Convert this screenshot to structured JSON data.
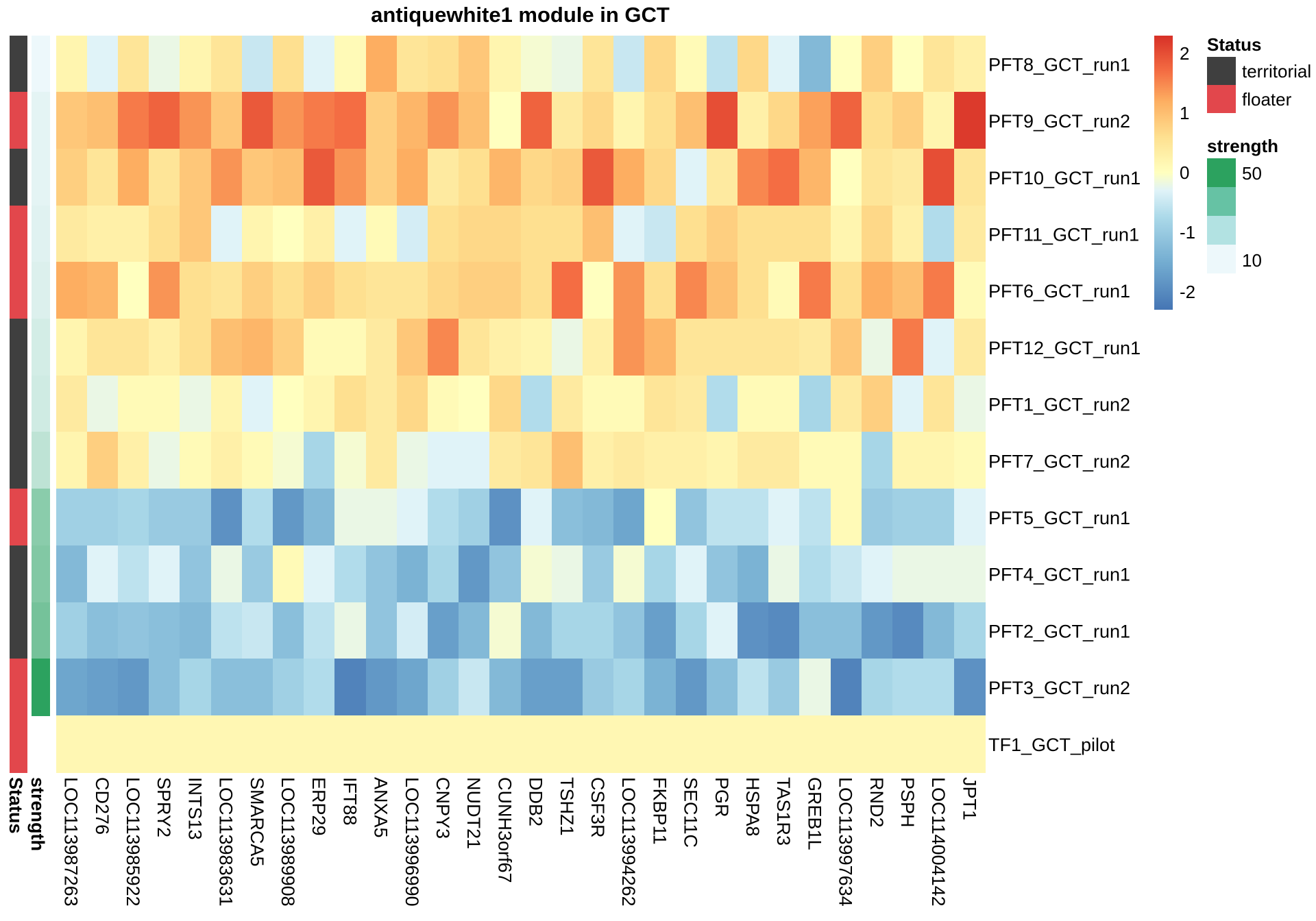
{
  "chart_data": {
    "type": "heatmap",
    "title": "antiquewhite1 module in GCT",
    "rows": [
      "PFT8_GCT_run1",
      "PFT9_GCT_run2",
      "PFT10_GCT_run1",
      "PFT11_GCT_run1",
      "PFT6_GCT_run1",
      "PFT12_GCT_run1",
      "PFT1_GCT_run2",
      "PFT7_GCT_run2",
      "PFT5_GCT_run1",
      "PFT4_GCT_run1",
      "PFT2_GCT_run1",
      "PFT3_GCT_run2",
      "TF1_GCT_pilot"
    ],
    "columns": [
      "LOC113987263",
      "CD276",
      "LOC113985922",
      "SPRY2",
      "INTS13",
      "LOC113983631",
      "SMARCA5",
      "LOC113989908",
      "ERP29",
      "IFT88",
      "ANXA5",
      "LOC113996990",
      "CNPY3",
      "NUDT21",
      "CUNH3orf67",
      "DDB2",
      "TSHZ1",
      "CSF3R",
      "LOC113994262",
      "FKBP11",
      "SEC11C",
      "PGR",
      "HSPA8",
      "TAS1R3",
      "GREB1L",
      "LOC113997634",
      "RND2",
      "PSPH",
      "LOC114004142",
      "JPT1"
    ],
    "values": [
      [
        0.2,
        -0.3,
        0.5,
        -0.2,
        0.2,
        0.5,
        -0.5,
        0.6,
        -0.3,
        0.1,
        1.2,
        0.5,
        0.6,
        0.9,
        0.2,
        -0.1,
        -0.2,
        0.5,
        -0.5,
        0.7,
        0.1,
        -0.6,
        0.7,
        -0.3,
        -1.3,
        0.0,
        0.8,
        0.0,
        0.5,
        0.3
      ],
      [
        0.9,
        1.0,
        1.6,
        1.8,
        1.4,
        0.9,
        1.9,
        1.4,
        1.6,
        1.7,
        0.8,
        1.1,
        1.4,
        1.0,
        0.0,
        1.8,
        0.4,
        0.7,
        0.2,
        0.6,
        1.0,
        2.0,
        0.3,
        0.7,
        1.3,
        1.8,
        0.6,
        0.8,
        0.2,
        2.2
      ],
      [
        0.8,
        0.5,
        1.2,
        0.5,
        0.9,
        1.4,
        0.9,
        1.0,
        1.9,
        1.4,
        0.8,
        1.2,
        0.4,
        0.6,
        1.1,
        0.7,
        0.8,
        1.9,
        1.2,
        0.7,
        -0.3,
        0.4,
        1.5,
        1.7,
        1.1,
        0.0,
        0.5,
        0.4,
        2.0,
        0.5
      ],
      [
        0.4,
        0.3,
        0.3,
        0.6,
        0.9,
        -0.3,
        0.2,
        0.0,
        0.3,
        -0.3,
        0.1,
        -0.4,
        0.6,
        0.7,
        0.7,
        0.6,
        0.6,
        1.0,
        -0.3,
        -0.5,
        0.6,
        0.8,
        0.6,
        0.6,
        0.6,
        0.2,
        0.7,
        0.3,
        -0.7,
        0.4
      ],
      [
        1.2,
        1.1,
        0.0,
        1.4,
        0.6,
        0.5,
        0.8,
        0.6,
        0.8,
        0.6,
        0.5,
        0.5,
        0.7,
        0.8,
        0.8,
        0.6,
        1.7,
        0.0,
        1.4,
        0.6,
        1.5,
        1.0,
        0.6,
        0.1,
        1.6,
        0.6,
        1.2,
        1.0,
        1.6,
        0.1
      ],
      [
        0.2,
        0.5,
        0.5,
        0.3,
        0.6,
        1.0,
        1.1,
        0.8,
        0.1,
        0.1,
        0.4,
        0.9,
        1.5,
        0.5,
        0.3,
        0.2,
        -0.2,
        0.3,
        1.4,
        1.1,
        0.5,
        0.5,
        0.5,
        0.5,
        0.4,
        0.9,
        -0.2,
        1.6,
        -0.3,
        0.4
      ],
      [
        0.4,
        -0.2,
        0.1,
        0.1,
        -0.2,
        0.2,
        -0.3,
        0.0,
        0.2,
        0.6,
        0.4,
        0.7,
        0.1,
        0.0,
        0.7,
        -0.7,
        0.4,
        0.1,
        0.1,
        0.5,
        0.4,
        -0.7,
        0.1,
        0.1,
        -0.8,
        0.4,
        0.8,
        -0.3,
        0.5,
        -0.2
      ],
      [
        0.2,
        0.8,
        0.3,
        -0.2,
        0.1,
        0.3,
        0.1,
        -0.1,
        -0.8,
        -0.1,
        0.4,
        -0.2,
        -0.3,
        -0.3,
        0.4,
        0.5,
        1.0,
        0.3,
        0.4,
        0.3,
        0.3,
        0.2,
        0.4,
        0.4,
        0.1,
        0.1,
        -0.8,
        0.2,
        0.2,
        0.1
      ],
      [
        -0.9,
        -0.9,
        -0.8,
        -1.0,
        -1.0,
        -1.9,
        -0.7,
        -1.8,
        -1.3,
        -0.2,
        -0.2,
        -0.3,
        -0.7,
        -0.9,
        -1.9,
        -0.3,
        -1.2,
        -1.3,
        -1.6,
        0.0,
        -1.1,
        -0.6,
        -0.6,
        -0.3,
        -0.6,
        0.1,
        -1.0,
        -0.9,
        -0.9,
        -0.3
      ],
      [
        -1.3,
        -0.3,
        -0.6,
        -0.3,
        -1.1,
        -0.2,
        -1.0,
        0.1,
        -0.3,
        -0.7,
        -1.1,
        -1.4,
        -0.8,
        -1.8,
        -1.1,
        -0.1,
        -0.2,
        -1.0,
        -0.1,
        -0.8,
        -0.3,
        -1.1,
        -1.4,
        -0.2,
        -0.7,
        -0.5,
        -0.3,
        -0.2,
        -0.2,
        -0.2
      ],
      [
        -0.9,
        -1.2,
        -1.1,
        -1.2,
        -1.3,
        -0.6,
        -0.5,
        -1.2,
        -0.6,
        -0.2,
        -1.1,
        -0.4,
        -1.7,
        -1.3,
        -0.1,
        -1.3,
        -0.8,
        -0.8,
        -1.1,
        -1.7,
        -0.8,
        -0.3,
        -1.9,
        -2.0,
        -1.2,
        -1.2,
        -1.8,
        -2.0,
        -1.3,
        -0.8
      ],
      [
        -1.6,
        -1.7,
        -1.8,
        -1.2,
        -0.8,
        -1.2,
        -1.2,
        -0.9,
        -0.7,
        -2.1,
        -1.8,
        -1.6,
        -0.9,
        -0.5,
        -1.3,
        -1.7,
        -1.7,
        -1.0,
        -0.8,
        -1.4,
        -1.8,
        -1.2,
        -0.6,
        -1.0,
        -0.2,
        -2.1,
        -0.8,
        -0.7,
        -0.7,
        -1.9
      ],
      [
        0.15,
        0.15,
        0.15,
        0.15,
        0.15,
        0.15,
        0.15,
        0.15,
        0.15,
        0.15,
        0.15,
        0.15,
        0.15,
        0.15,
        0.15,
        0.15,
        0.15,
        0.15,
        0.15,
        0.15,
        0.15,
        0.15,
        0.15,
        0.15,
        0.15,
        0.15,
        0.15,
        0.15,
        0.15,
        0.15
      ]
    ],
    "color_scale": {
      "stops": [
        {
          "value": -2.3,
          "color": "#4575b4"
        },
        {
          "value": -1.5,
          "color": "#74add1"
        },
        {
          "value": -0.75,
          "color": "#abd9e9"
        },
        {
          "value": -0.3,
          "color": "#e0f3f8"
        },
        {
          "value": 0,
          "color": "#ffffbf"
        },
        {
          "value": 0.6,
          "color": "#fee090"
        },
        {
          "value": 1.2,
          "color": "#fdae61"
        },
        {
          "value": 1.7,
          "color": "#f46d43"
        },
        {
          "value": 2.3,
          "color": "#d73027"
        }
      ],
      "ticks": [
        2,
        1,
        0,
        -1,
        -2
      ],
      "range": [
        -2.3,
        2.3
      ]
    },
    "annotations": {
      "labels": [
        "Status",
        "strength"
      ],
      "status": {
        "title": "Status",
        "legend": [
          {
            "label": "territorial",
            "color": "#3f3f3f"
          },
          {
            "label": "floater",
            "color": "#e2474c"
          }
        ],
        "per_row": [
          "territorial",
          "floater",
          "territorial",
          "floater",
          "floater",
          "territorial",
          "territorial",
          "territorial",
          "floater",
          "territorial",
          "territorial",
          "floater",
          "floater"
        ]
      },
      "strength": {
        "title": "strength",
        "legend_ticks": [
          "50",
          "10"
        ],
        "legend_colors": [
          "#2ca25f",
          "#66c2a4",
          "#b2e2e2",
          "#edf8fb"
        ],
        "per_row": [
          9,
          12,
          12,
          13,
          14,
          16,
          17,
          21,
          33,
          35,
          38,
          55,
          null
        ],
        "low_color": "#edf8fb",
        "high_color": "#2ca25f",
        "range": [
          10,
          55
        ]
      }
    }
  }
}
